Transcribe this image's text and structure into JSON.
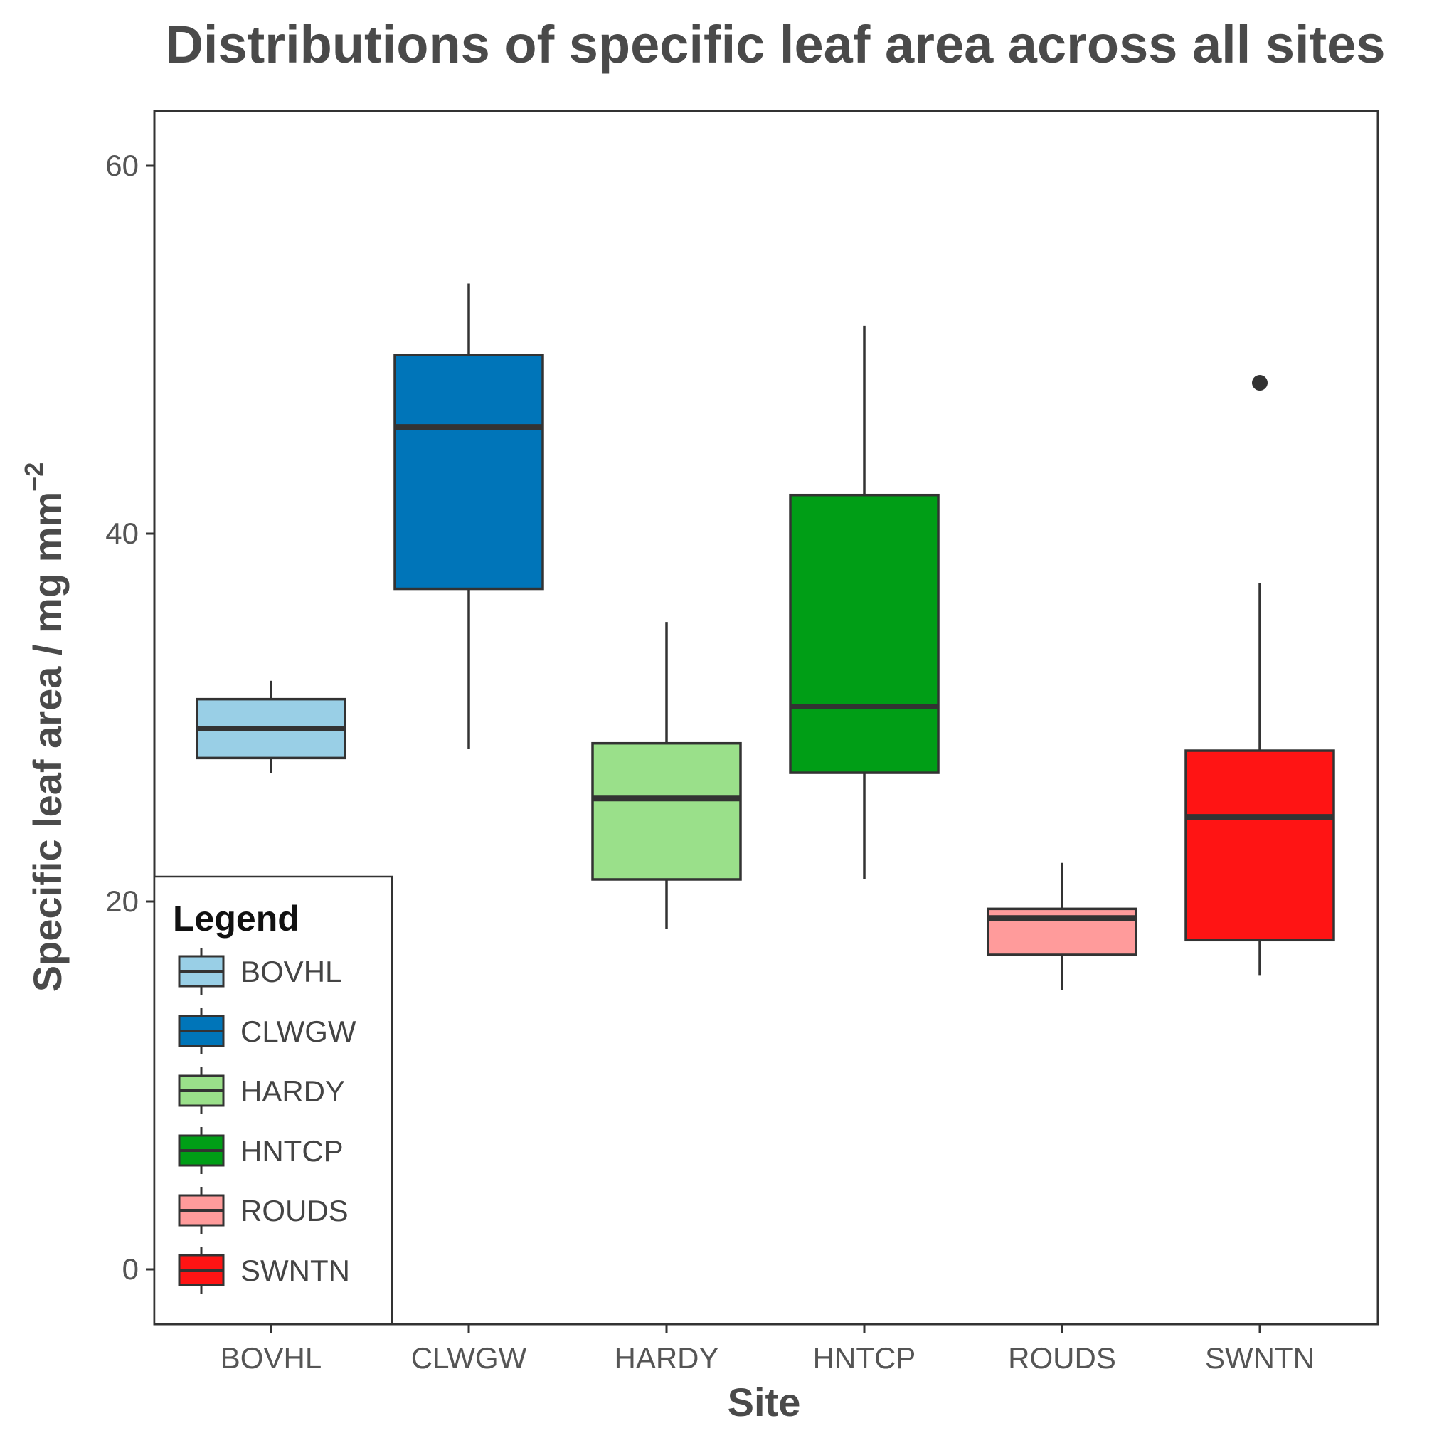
{
  "chart_data": {
    "type": "boxplot",
    "title": "Distributions of specific leaf area across all sites",
    "xlabel": "Site",
    "ylabel_main": "Specific leaf area / mg mm",
    "ylabel_sup": "−2",
    "ylim": [
      -3,
      63
    ],
    "yticks": [
      0,
      20,
      40,
      60
    ],
    "ytick_labels": [
      "0",
      "20",
      "40",
      "60"
    ],
    "legend": {
      "title": "Legend",
      "position": "bottom-left",
      "entries": [
        "BOVHL",
        "CLWGW",
        "HARDY",
        "HNTCP",
        "ROUDS",
        "SWNTN"
      ]
    },
    "categories": [
      "BOVHL",
      "CLWGW",
      "HARDY",
      "HNTCP",
      "ROUDS",
      "SWNTN"
    ],
    "series": [
      {
        "name": "BOVHL",
        "color": "#99cfe6",
        "whisker_low": 27.0,
        "q1": 27.8,
        "median": 29.4,
        "q3": 31.0,
        "whisker_high": 32.0,
        "outliers": []
      },
      {
        "name": "CLWGW",
        "color": "#0075b9",
        "whisker_low": 28.3,
        "q1": 37.0,
        "median": 45.8,
        "q3": 49.7,
        "whisker_high": 53.6,
        "outliers": []
      },
      {
        "name": "HARDY",
        "color": "#9ae08a",
        "whisker_low": 18.5,
        "q1": 21.2,
        "median": 25.6,
        "q3": 28.6,
        "whisker_high": 35.2,
        "outliers": []
      },
      {
        "name": "HNTCP",
        "color": "#009e16",
        "whisker_low": 21.2,
        "q1": 27.0,
        "median": 30.6,
        "q3": 42.1,
        "whisker_high": 51.3,
        "outliers": []
      },
      {
        "name": "ROUDS",
        "color": "#ff9b9b",
        "whisker_low": 15.2,
        "q1": 17.1,
        "median": 19.1,
        "q3": 19.6,
        "whisker_high": 22.1,
        "outliers": []
      },
      {
        "name": "SWNTN",
        "color": "#ff1414",
        "whisker_low": 16.0,
        "q1": 17.9,
        "median": 24.6,
        "q3": 28.2,
        "whisker_high": 37.3,
        "outliers": [
          48.2
        ]
      }
    ]
  }
}
